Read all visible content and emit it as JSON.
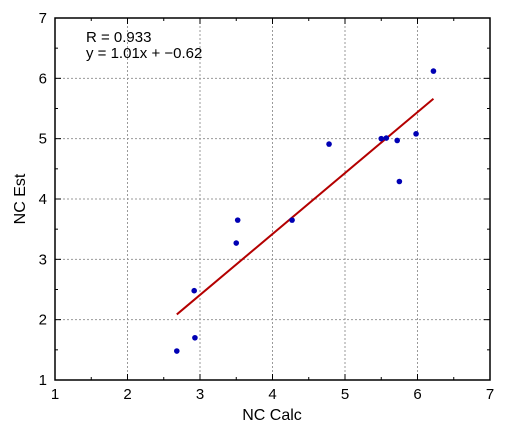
{
  "chart_data": {
    "type": "scatter",
    "xlabel": "NC Calc",
    "ylabel": "NC Est",
    "xlim": [
      1,
      7
    ],
    "ylim": [
      1,
      7
    ],
    "xticks": [
      1,
      2,
      3,
      4,
      5,
      6,
      7
    ],
    "yticks": [
      1,
      2,
      3,
      4,
      5,
      6,
      7
    ],
    "grid": true,
    "annotations": [
      "R = 0.933",
      "y = 1.01x + −0.62"
    ],
    "series": [
      {
        "points": [
          {
            "x": 2.68,
            "y": 1.48
          },
          {
            "x": 2.93,
            "y": 1.7
          },
          {
            "x": 2.92,
            "y": 2.48
          },
          {
            "x": 3.5,
            "y": 3.27
          },
          {
            "x": 3.52,
            "y": 3.65
          },
          {
            "x": 4.27,
            "y": 3.65
          },
          {
            "x": 4.78,
            "y": 4.91
          },
          {
            "x": 5.5,
            "y": 5.0
          },
          {
            "x": 5.57,
            "y": 5.01
          },
          {
            "x": 5.72,
            "y": 4.97
          },
          {
            "x": 5.75,
            "y": 4.29
          },
          {
            "x": 5.98,
            "y": 5.08
          },
          {
            "x": 6.22,
            "y": 6.12
          }
        ],
        "color": "#0000b4"
      }
    ],
    "fit_line": {
      "x": [
        2.68,
        6.22
      ],
      "slope": 1.01,
      "intercept": -0.62,
      "color": "#b40000"
    }
  }
}
